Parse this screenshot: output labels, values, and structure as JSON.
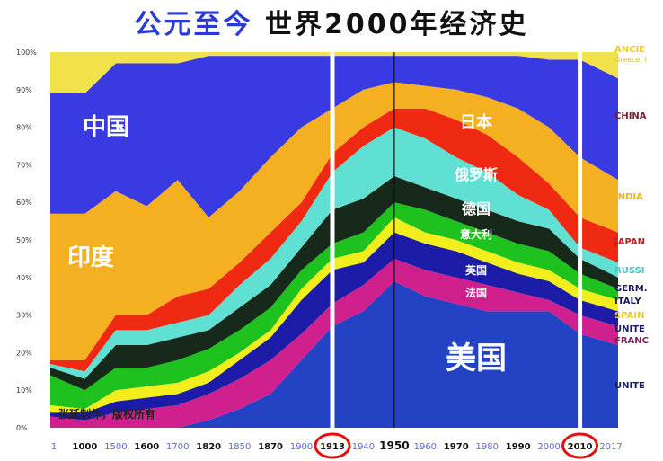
{
  "title": {
    "part1": "公元至今",
    "part2": "世界2000年经济史"
  },
  "watermark": "张延制作，版权所有",
  "chart_data": {
    "type": "area",
    "stacked": true,
    "ylim": [
      0,
      100
    ],
    "yticks": [
      "0%",
      "10%",
      "20%",
      "30%",
      "40%",
      "50%",
      "60%",
      "70%",
      "80%",
      "90%",
      "100%"
    ],
    "categories": [
      "1",
      "1000",
      "1500",
      "1600",
      "1700",
      "1820",
      "1850",
      "1870",
      "1900",
      "1913",
      "1940",
      "1950",
      "1960",
      "1970",
      "1980",
      "1990",
      "2000",
      "2010",
      "2017"
    ],
    "highlighted_years": [
      "1913",
      "2010"
    ],
    "reference_line": "1950",
    "series": [
      {
        "name": "美国",
        "legend": "UNITE",
        "color": "#2342c4",
        "values": [
          0,
          0,
          0,
          0,
          0,
          2,
          5,
          9,
          18,
          27,
          31,
          39,
          35,
          33,
          31,
          31,
          31,
          25,
          22
        ]
      },
      {
        "name": "法国",
        "legend": "FRANC",
        "color": "#d0208e",
        "values": [
          3,
          2,
          4,
          5,
          6,
          7,
          8,
          9,
          7,
          6,
          7,
          6,
          7,
          7,
          7,
          5,
          3,
          5,
          5
        ]
      },
      {
        "name": "英国",
        "legend": "UNITE",
        "color": "#1c1ca8",
        "values": [
          1,
          2,
          3,
          3,
          3,
          3,
          5,
          6,
          9,
          9,
          6,
          7,
          7,
          7,
          6,
          5,
          5,
          4,
          4
        ]
      },
      {
        "name": "",
        "legend": "SPAIN",
        "color": "#f2ee1c",
        "values": [
          2,
          1,
          3,
          3,
          3,
          3,
          2,
          2,
          3,
          3,
          3,
          4,
          3,
          3,
          3,
          3,
          3,
          3,
          3
        ]
      },
      {
        "name": "意大利",
        "legend": "ITALY",
        "color": "#1ec21e",
        "values": [
          8,
          5,
          6,
          5,
          6,
          6,
          6,
          6,
          5,
          4,
          5,
          4,
          6,
          5,
          5,
          5,
          5,
          4,
          3
        ]
      },
      {
        "name": "德国",
        "legend": "GERM.",
        "color": "#17291a",
        "values": [
          2,
          3,
          6,
          6,
          6,
          5,
          6,
          6,
          6,
          9,
          9,
          7,
          6,
          6,
          6,
          6,
          6,
          4,
          3
        ]
      },
      {
        "name": "俄罗斯",
        "legend": "RUSSI",
        "color": "#5fe0d2",
        "values": [
          1,
          2,
          4,
          4,
          4,
          4,
          6,
          7,
          7,
          10,
          14,
          13,
          13,
          11,
          10,
          7,
          5,
          3,
          4
        ]
      },
      {
        "name": "日本",
        "legend": "JAPAN",
        "color": "#f02a12",
        "values": [
          1,
          3,
          4,
          4,
          7,
          7,
          6,
          7,
          5,
          5,
          5,
          5,
          8,
          10,
          10,
          10,
          7,
          8,
          8
        ]
      },
      {
        "name": "印度",
        "legend": "INDIA",
        "color": "#f5b022",
        "values": [
          39,
          39,
          33,
          29,
          31,
          19,
          19,
          20,
          20,
          12,
          10,
          7,
          6,
          8,
          10,
          13,
          15,
          16,
          14
        ]
      },
      {
        "name": "中国",
        "legend": "CHINA",
        "color": "#3a3ae2",
        "values": [
          32,
          32,
          34,
          38,
          31,
          43,
          36,
          27,
          19,
          14,
          9,
          7,
          8,
          9,
          11,
          14,
          18,
          26,
          27
        ]
      },
      {
        "name": "",
        "legend": "ANCIE",
        "legend_sub": "Greece, I",
        "color": "#f2e24a",
        "values": [
          11,
          11,
          3,
          3,
          3,
          1,
          1,
          1,
          1,
          1,
          1,
          1,
          1,
          1,
          1,
          1,
          2,
          2,
          7
        ]
      }
    ]
  }
}
